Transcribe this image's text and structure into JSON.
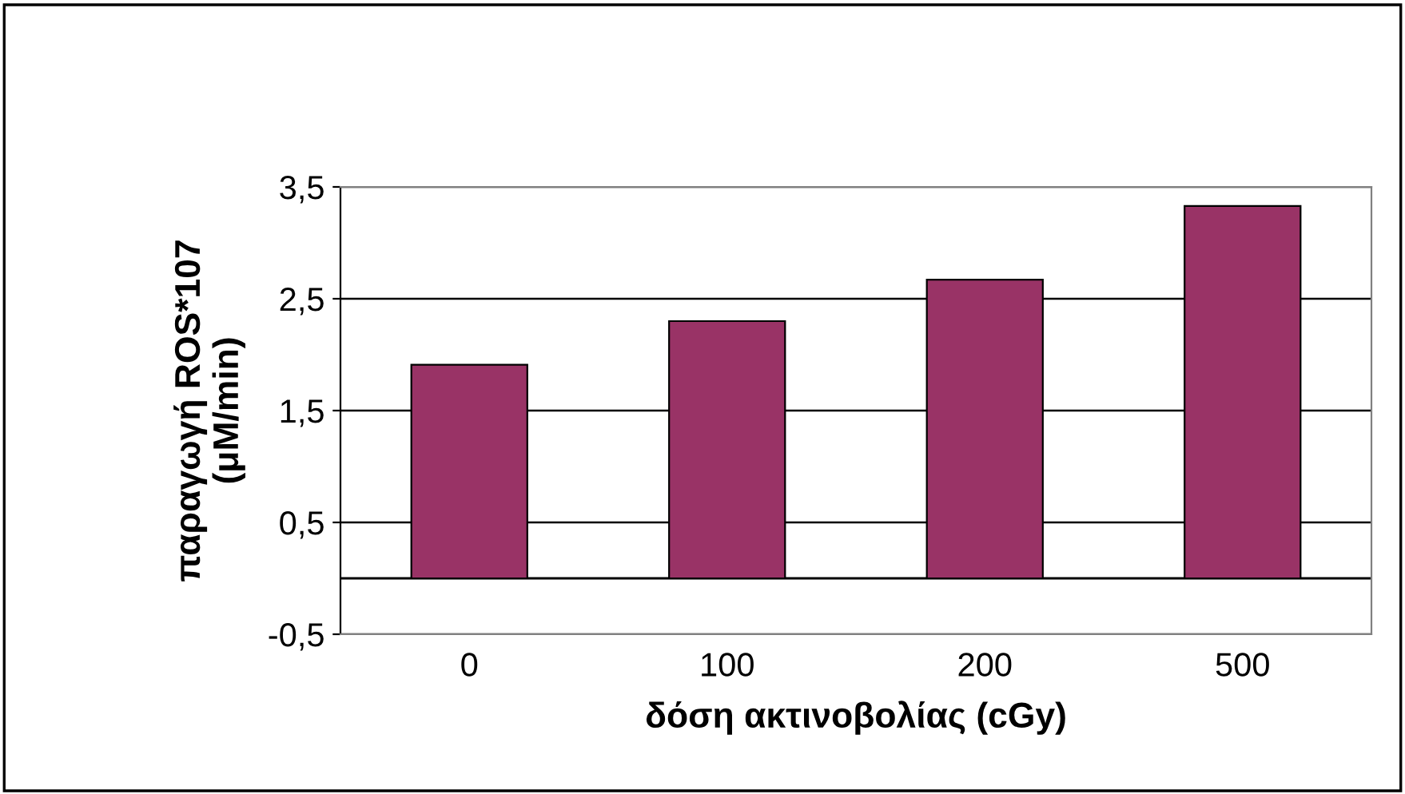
{
  "chart_data": {
    "type": "bar",
    "xlabel": "δόση ακτινοβολίας (cGy)",
    "ylabel": "παραγωγή ROS*107\n(μM/min)",
    "categories": [
      "0",
      "100",
      "200",
      "500"
    ],
    "series": [
      {
        "color": "#993366",
        "values": [
          1.91,
          2.3,
          2.67,
          3.33
        ]
      }
    ],
    "ylim": [
      -0.5,
      3.5
    ],
    "yticks": [
      {
        "value": -0.5,
        "label": "-0,5"
      },
      {
        "value": 0.5,
        "label": "0,5"
      },
      {
        "value": 1.5,
        "label": "1,5"
      },
      {
        "value": 2.5,
        "label": "2,5"
      },
      {
        "value": 3.5,
        "label": "3,5"
      }
    ],
    "ref_lines": [
      {
        "axis": "y",
        "value": 0,
        "color": "#000000"
      }
    ],
    "grid": "y",
    "legend": false
  }
}
